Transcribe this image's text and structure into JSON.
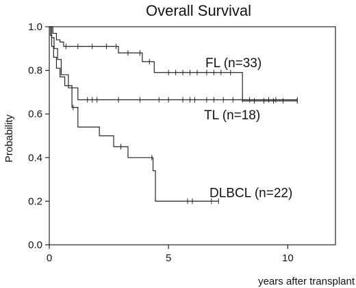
{
  "chart_data": {
    "type": "line",
    "title": "Overall Survival",
    "xlabel": "years after transplant",
    "ylabel": "Probability",
    "xlim": [
      0,
      12
    ],
    "ylim": [
      0,
      1.0
    ],
    "x_ticks": [
      0,
      5,
      10
    ],
    "y_ticks": [
      0.0,
      0.2,
      0.4,
      0.6,
      0.8,
      1.0
    ],
    "x_tick_labels": [
      "0",
      "5",
      "10"
    ],
    "y_tick_labels": [
      "0.0",
      "0.2",
      "0.4",
      "0.6",
      "0.8",
      "1.0"
    ],
    "grid": false,
    "legend": "none",
    "series": [
      {
        "name": "FL (n=33)",
        "step_x": [
          0,
          0.15,
          0.3,
          0.45,
          0.6,
          0.8,
          2.6,
          2.9,
          3.9,
          4.4,
          8.1,
          10.4
        ],
        "step_y": [
          1.0,
          0.97,
          0.94,
          0.93,
          0.91,
          0.91,
          0.91,
          0.88,
          0.84,
          0.79,
          0.66,
          0.66
        ],
        "censored_x": [
          0.7,
          1.2,
          1.8,
          2.4,
          2.8,
          3.3,
          3.8,
          4.2,
          5.0,
          5.3,
          5.6,
          5.9,
          6.2,
          6.6,
          6.9,
          7.2,
          7.6,
          8.6,
          9.0,
          9.4,
          9.8,
          10.4
        ],
        "label_y_anchor": 0.84
      },
      {
        "name": "TL (n=18)",
        "step_x": [
          0,
          0.1,
          0.2,
          0.35,
          0.5,
          0.8,
          1.2,
          10.4
        ],
        "step_y": [
          1.0,
          0.95,
          0.9,
          0.85,
          0.78,
          0.72,
          0.665,
          0.665
        ],
        "censored_x": [
          1.6,
          1.8,
          2.0,
          2.9,
          3.8,
          4.6,
          5.0,
          5.6,
          5.9,
          6.1,
          6.6,
          6.9,
          7.3,
          7.7,
          8.1,
          8.4,
          9.2,
          9.5,
          10.4
        ],
        "label_y_anchor": 0.6
      },
      {
        "name": "DLBCL (n=22)",
        "step_x": [
          0,
          0.05,
          0.1,
          0.18,
          0.3,
          0.45,
          0.65,
          0.95,
          1.2,
          2.1,
          2.7,
          3.3,
          4.35,
          4.45,
          7.1
        ],
        "step_y": [
          1.0,
          0.96,
          0.91,
          0.86,
          0.81,
          0.77,
          0.73,
          0.63,
          0.54,
          0.5,
          0.45,
          0.4,
          0.34,
          0.2,
          0.2
        ],
        "censored_x": [
          1.0,
          3.0,
          4.3,
          5.8,
          6.0,
          6.8,
          7.1
        ],
        "label_y_anchor": 0.2
      }
    ]
  }
}
